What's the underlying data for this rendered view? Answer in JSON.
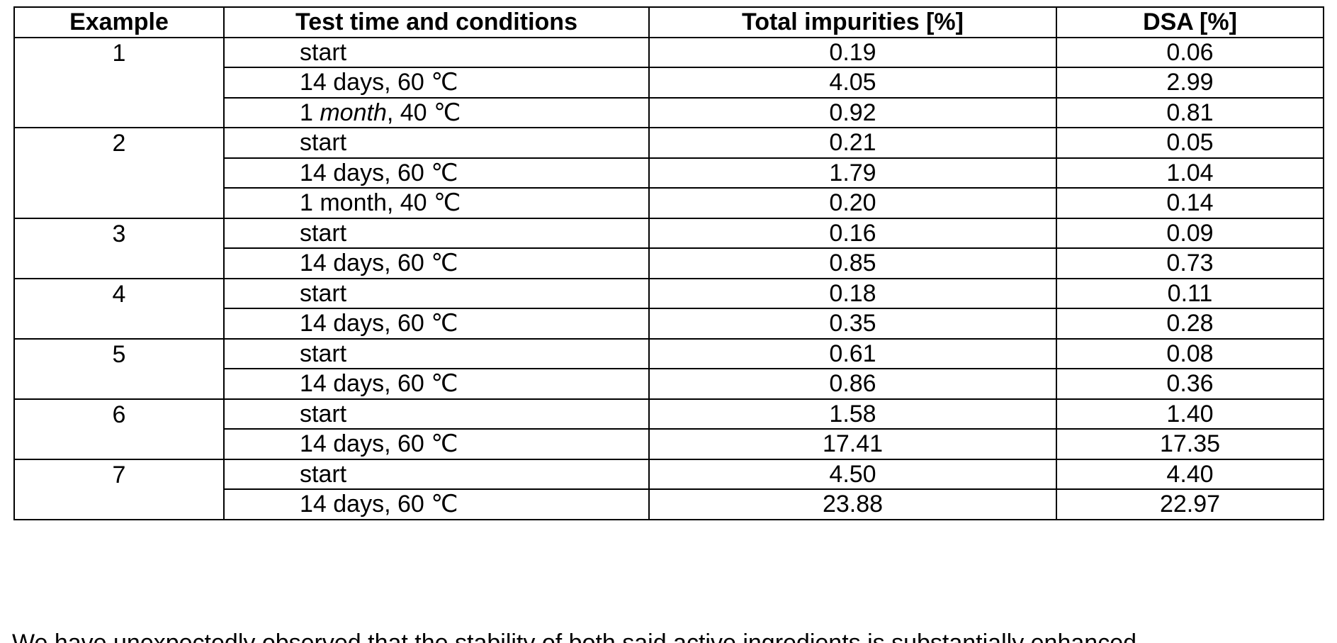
{
  "table": {
    "headers": [
      "Example",
      "Test time and conditions",
      "Total impurities [%]",
      "DSA [%]"
    ],
    "rows": [
      {
        "example": "1",
        "condition": "start",
        "total": "0.19",
        "dsa": "0.06"
      },
      {
        "example": "",
        "condition": "14 days, 60 ℃",
        "total": "4.05",
        "dsa": "2.99"
      },
      {
        "example": "",
        "condition": "1 month, 40 ℃",
        "condition_italic": "month",
        "total": "0.92",
        "dsa": "0.81"
      },
      {
        "example": "2",
        "condition": "start",
        "total": "0.21",
        "dsa": "0.05"
      },
      {
        "example": "",
        "condition": "14 days, 60 ℃",
        "total": "1.79",
        "dsa": "1.04"
      },
      {
        "example": "",
        "condition": "1 month, 40 ℃",
        "total": "0.20",
        "dsa": "0.14"
      },
      {
        "example": "3",
        "condition": "start",
        "total": "0.16",
        "dsa": "0.09"
      },
      {
        "example": "",
        "condition": "14 days, 60 ℃",
        "total": "0.85",
        "dsa": "0.73"
      },
      {
        "example": "4",
        "condition": "start",
        "total": "0.18",
        "dsa": "0.11"
      },
      {
        "example": "",
        "condition": "14 days, 60 ℃",
        "total": "0.35",
        "dsa": "0.28"
      },
      {
        "example": "5",
        "condition": "start",
        "total": "0.61",
        "dsa": "0.08"
      },
      {
        "example": "",
        "condition": "14 days, 60 ℃",
        "total": "0.86",
        "dsa": "0.36"
      },
      {
        "example": "6",
        "condition": "start",
        "total": "1.58",
        "dsa": "1.40"
      },
      {
        "example": "",
        "condition": "14 days, 60 ℃",
        "total": "17.41",
        "dsa": "17.35"
      },
      {
        "example": "7",
        "condition": "start",
        "total": "4.50",
        "dsa": "4.40"
      },
      {
        "example": "",
        "condition": "14 days, 60 ℃",
        "total": "23.88",
        "dsa": "22.97"
      }
    ]
  },
  "trailing_text": "We have unexpectedly observed that the stability of both said active ingredients is substantially enhanced"
}
